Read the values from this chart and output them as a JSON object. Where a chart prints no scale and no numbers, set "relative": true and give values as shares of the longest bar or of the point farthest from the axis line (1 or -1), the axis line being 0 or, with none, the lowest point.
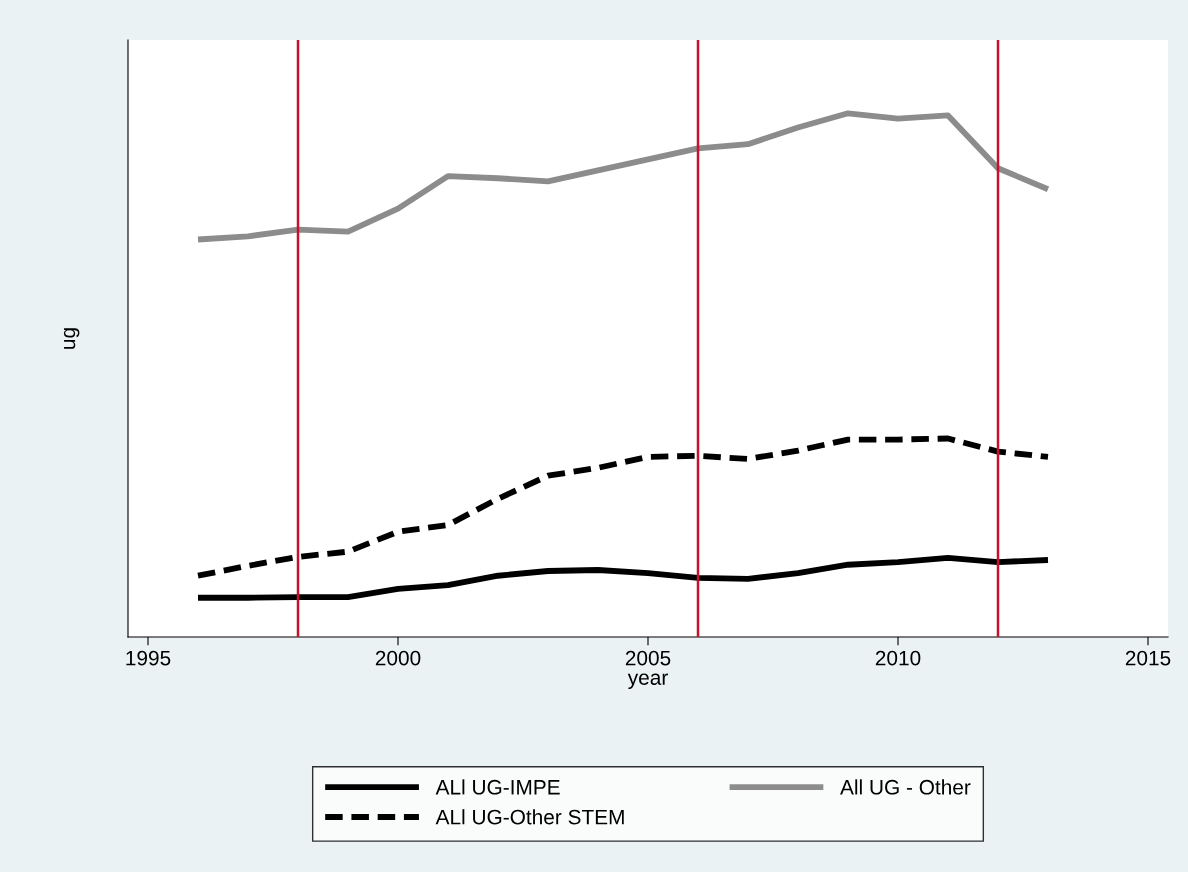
{
  "chart_data": {
    "type": "line",
    "relative": true,
    "xlabel": "year",
    "ylabel": "ug",
    "x": [
      1996,
      1997,
      1998,
      1999,
      2000,
      2001,
      2002,
      2003,
      2004,
      2005,
      2006,
      2007,
      2008,
      2009,
      2010,
      2011,
      2012,
      2013
    ],
    "xlim": [
      1994.6,
      2015.4
    ],
    "xticks": [
      1995,
      2000,
      2005,
      2010,
      2015
    ],
    "series": [
      {
        "name": "ALl UG-IMPE",
        "color": "#000000",
        "line_style": "solid",
        "values": [
          0.075,
          0.075,
          0.076,
          0.076,
          0.092,
          0.099,
          0.117,
          0.126,
          0.128,
          0.122,
          0.113,
          0.111,
          0.122,
          0.138,
          0.143,
          0.151,
          0.143,
          0.147
        ]
      },
      {
        "name": "ALl UG-Other STEM",
        "color": "#000000",
        "line_style": "dashed",
        "values": [
          0.117,
          0.136,
          0.153,
          0.163,
          0.201,
          0.214,
          0.264,
          0.308,
          0.323,
          0.344,
          0.346,
          0.34,
          0.356,
          0.377,
          0.377,
          0.379,
          0.354,
          0.344
        ]
      },
      {
        "name": "All UG - Other",
        "color": "#8c8c8c",
        "line_style": "solid",
        "values": [
          0.759,
          0.765,
          0.778,
          0.774,
          0.818,
          0.88,
          0.876,
          0.87,
          0.891,
          0.912,
          0.933,
          0.941,
          0.973,
          1.0,
          0.99,
          0.996,
          0.895,
          0.855
        ]
      }
    ],
    "ref_lines": [
      {
        "axis": "x",
        "value": 1998,
        "color": "#c8102e"
      },
      {
        "axis": "x",
        "value": 2006,
        "color": "#c8102e"
      },
      {
        "axis": "x",
        "value": 2012,
        "color": "#c8102e"
      }
    ],
    "legend": "bottom"
  }
}
